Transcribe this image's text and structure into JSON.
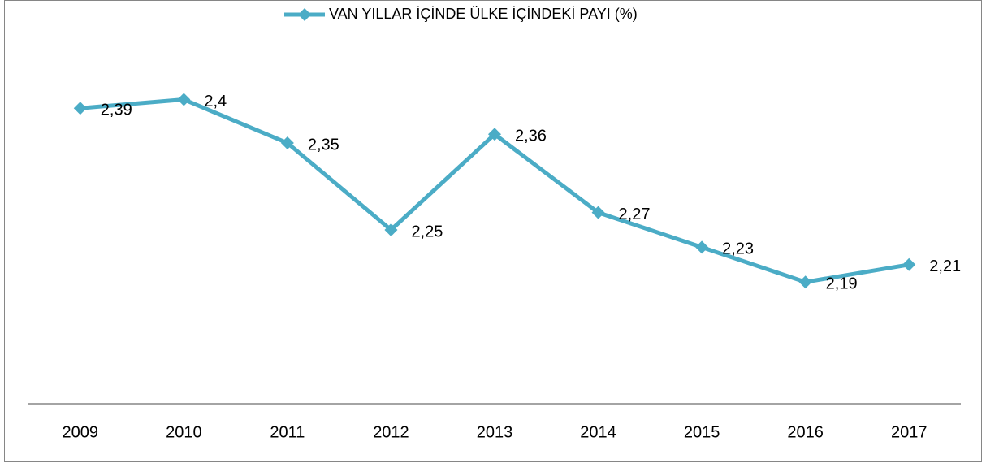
{
  "chart_data": {
    "type": "line",
    "series": [
      {
        "name": "VAN YILLAR İÇİNDE ÜLKE İÇİNDEKİ PAYI (%)",
        "color": "#4bacc6",
        "values": [
          2.39,
          2.4,
          2.35,
          2.25,
          2.36,
          2.27,
          2.23,
          2.19,
          2.21
        ],
        "value_labels": [
          "2,39",
          "2,4",
          "2,35",
          "2,25",
          "2,36",
          "2,27",
          "2,23",
          "2,19",
          "2,21"
        ]
      }
    ],
    "categories": [
      "2009",
      "2010",
      "2011",
      "2012",
      "2013",
      "2014",
      "2015",
      "2016",
      "2017"
    ],
    "ylim": [
      2.05,
      2.45
    ],
    "legend": "top"
  }
}
